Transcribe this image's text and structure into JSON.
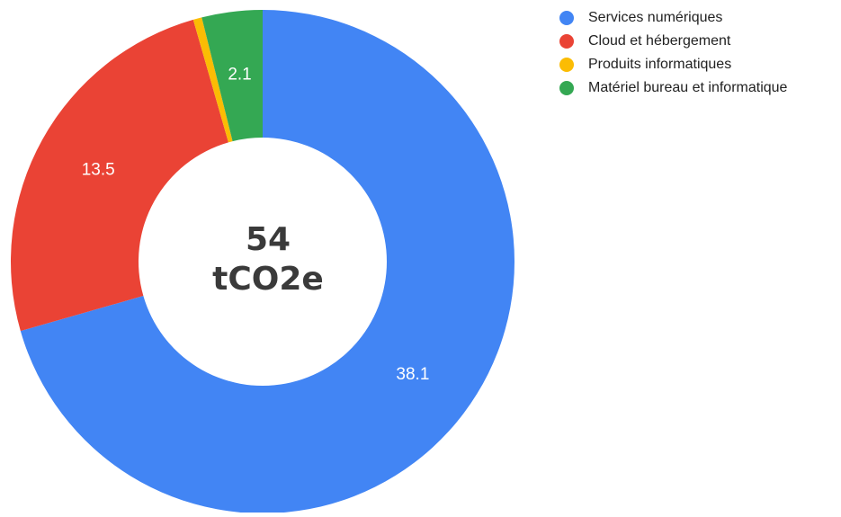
{
  "chart_data": {
    "type": "donut",
    "categories": [
      "Services numériques",
      "Cloud et hébergement",
      "Produits informatiques",
      "Matériel bureau et informatique"
    ],
    "values": [
      38.1,
      13.5,
      0.3,
      2.1
    ],
    "colors": [
      "#4285f4",
      "#ea4335",
      "#fbbc04",
      "#34a853"
    ],
    "total": 54,
    "total_unit": "tCO2e",
    "legend": "top-right"
  }
}
